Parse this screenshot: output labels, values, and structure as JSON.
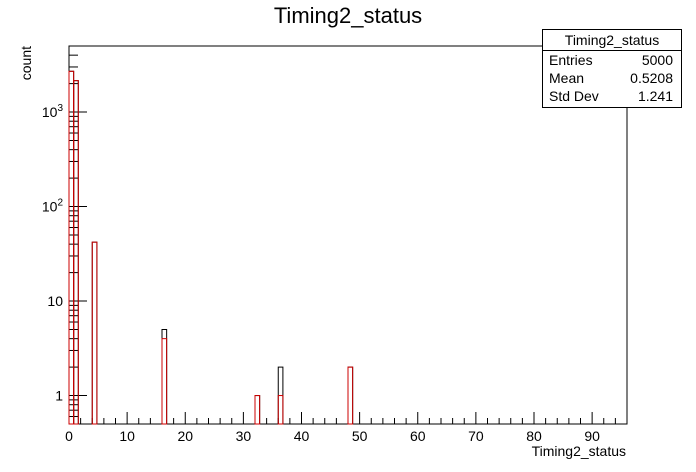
{
  "title": "Timing2_status",
  "stats": {
    "name": "Timing2_status",
    "rows": [
      {
        "label": "Entries",
        "value": "5000"
      },
      {
        "label": "Mean",
        "value": "0.5208"
      },
      {
        "label": "Std Dev",
        "value": "1.241"
      }
    ]
  },
  "chart_data": {
    "type": "histogram",
    "title": "Timing2_status",
    "xlabel": "Timing2_status",
    "ylabel": "count",
    "xlim": [
      0,
      96
    ],
    "ylim": [
      0.5,
      5000
    ],
    "yscale": "log",
    "bin_width": 0.8,
    "x_ticks": [
      "0",
      "10",
      "20",
      "30",
      "40",
      "50",
      "60",
      "70",
      "80",
      "90"
    ],
    "y_ticks": [
      "1",
      "10",
      "10^2",
      "10^3"
    ],
    "series": [
      {
        "color": "#000000",
        "bins": [
          {
            "x": 0,
            "y": 2700
          },
          {
            "x": 0.8,
            "y": 2150
          },
          {
            "x": 4,
            "y": 42
          },
          {
            "x": 16,
            "y": 5
          },
          {
            "x": 32,
            "y": 1
          },
          {
            "x": 36,
            "y": 2
          },
          {
            "x": 48,
            "y": 2
          }
        ]
      },
      {
        "color": "#cc0000",
        "bins": [
          {
            "x": 0,
            "y": 2700
          },
          {
            "x": 0.8,
            "y": 2150
          },
          {
            "x": 4,
            "y": 42
          },
          {
            "x": 16,
            "y": 4
          },
          {
            "x": 32,
            "y": 1
          },
          {
            "x": 36,
            "y": 1
          },
          {
            "x": 48,
            "y": 2
          }
        ]
      }
    ]
  }
}
